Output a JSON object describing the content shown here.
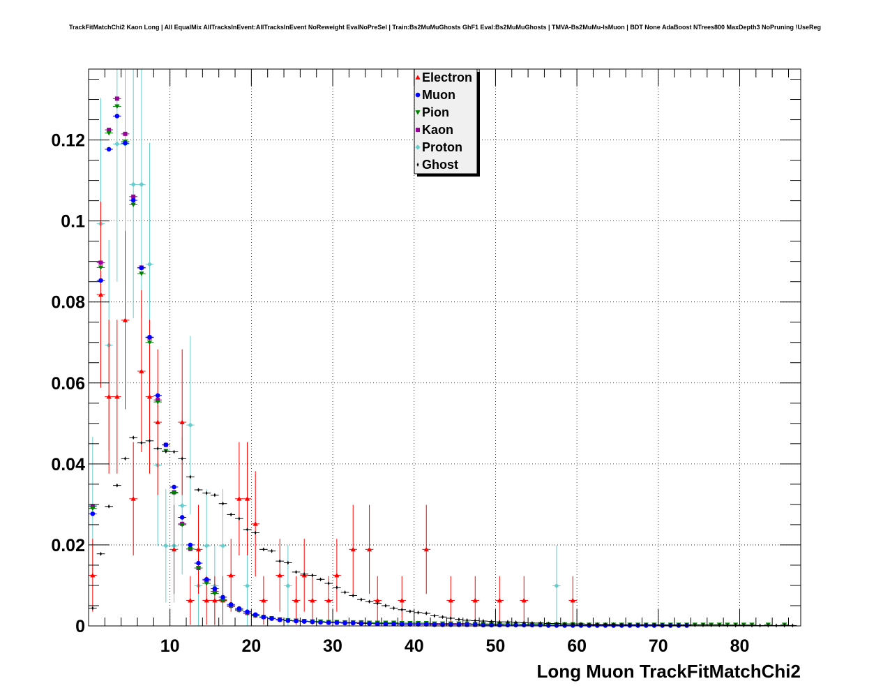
{
  "chart_data": {
    "type": "scatter",
    "title": "TrackFitMatchChi2 Kaon Long | All EqualMix AllTracksInEvent:AllTracksInEvent NoReweight EvalNoPreSel | Train:Bs2MuMuGhosts GhF1 Eval:Bs2MuMuGhosts | TMVA-Bs2MuMu-IsMuon | BDT None AdaBoost NTrees800 MaxDepth3 NoPruning !UseReg",
    "xlabel": "Long Muon TrackFitMatchChi2",
    "ylabel": "",
    "xlim": [
      0,
      87.5
    ],
    "ylim": [
      0,
      0.1375
    ],
    "xticks": [
      "10",
      "20",
      "30",
      "40",
      "50",
      "60",
      "70",
      "80"
    ],
    "yticks": [
      "0",
      "0.02",
      "0.04",
      "0.06",
      "0.08",
      "0.1",
      "0.12"
    ],
    "grid": true,
    "legend_position": "top-center",
    "series": [
      {
        "name": "Electron",
        "color": "#ff0000",
        "marker": "triangle-up",
        "x": [
          0.5,
          1.5,
          2.5,
          3.5,
          4.5,
          5.5,
          6.5,
          7.5,
          8.5,
          10.5,
          11.5,
          12.5,
          13.5,
          14.5,
          15.5,
          16.5,
          17.5,
          18.5,
          19.5,
          20.5,
          21.5,
          23.5,
          25.5,
          26.5,
          27.5,
          29.5,
          30.5,
          32.5,
          34.5,
          35.5,
          38.5,
          41.5,
          44.5,
          47.5,
          50.5,
          53.5,
          59.5
        ],
        "y": [
          0.0125,
          0.0818,
          0.0566,
          0.0566,
          0.0755,
          0.0314,
          0.0629,
          0.0566,
          0.0503,
          0.0189,
          0.0503,
          0.0063,
          0.0189,
          0.0063,
          0.0063,
          0.0063,
          0.0125,
          0.0314,
          0.0314,
          0.0252,
          0.0063,
          0.0125,
          0.0063,
          0.0125,
          0.0063,
          0.0063,
          0.0125,
          0.0189,
          0.0189,
          0.0063,
          0.0063,
          0.0189,
          0.0063,
          0.0063,
          0.0063,
          0.0063,
          0.0063
        ],
        "err": [
          0.009,
          0.023,
          0.019,
          0.019,
          0.022,
          0.014,
          0.02,
          0.019,
          0.018,
          0.011,
          0.018,
          0.006,
          0.011,
          0.006,
          0.006,
          0.006,
          0.009,
          0.014,
          0.014,
          0.013,
          0.006,
          0.009,
          0.006,
          0.009,
          0.006,
          0.006,
          0.009,
          0.011,
          0.011,
          0.006,
          0.006,
          0.011,
          0.006,
          0.006,
          0.006,
          0.006,
          0.006
        ]
      },
      {
        "name": "Muon",
        "color": "#0000ff",
        "marker": "circle",
        "x": [
          0.5,
          1.5,
          2.5,
          3.5,
          4.5,
          5.5,
          6.5,
          7.5,
          8.5,
          9.5,
          10.5,
          11.5,
          12.5,
          13.5,
          14.5,
          15.5,
          16.5,
          17.5,
          18.5,
          19.5,
          20.5,
          21.5,
          22.5,
          23.5,
          24.5,
          25.5,
          26.5,
          27.5,
          28.5,
          29.5,
          30.5,
          31.5,
          32.5,
          33.5,
          34.5,
          35.5,
          36.5,
          37.5,
          38.5,
          39.5,
          40.5,
          41.5,
          42.5,
          43.5,
          44.5,
          45.5,
          46.5,
          47.5,
          48.5,
          49.5,
          50.5,
          51.5,
          52.5,
          53.5,
          54.5,
          55.5,
          56.5,
          57.5,
          58.5,
          59.5,
          60.5,
          61.5,
          62.5,
          63.5,
          64.5,
          65.5,
          66.5,
          67.5,
          68.5,
          69.5,
          70.5,
          71.5,
          72.5,
          73.5
        ],
        "y": [
          0.0277,
          0.0853,
          0.1177,
          0.1259,
          0.1192,
          0.1051,
          0.0884,
          0.0713,
          0.0569,
          0.0447,
          0.0343,
          0.0268,
          0.02,
          0.0155,
          0.0115,
          0.0092,
          0.0071,
          0.0053,
          0.0043,
          0.0035,
          0.0028,
          0.0022,
          0.0018,
          0.0015,
          0.0013,
          0.0012,
          0.0011,
          0.001,
          0.0009,
          0.0008,
          0.0008,
          0.0007,
          0.0007,
          0.0006,
          0.0006,
          0.0005,
          0.0005,
          0.0005,
          0.0004,
          0.0004,
          0.0004,
          0.0004,
          0.0003,
          0.0003,
          0.0003,
          0.0003,
          0.0003,
          0.0003,
          0.0002,
          0.0002,
          0.0002,
          0.0002,
          0.0002,
          0.0002,
          0.0002,
          0.0002,
          0.0001,
          0.0001,
          0.0001,
          0.0001,
          0.0001,
          0.0001,
          0.0001,
          0.0001,
          0.0001,
          0.0001,
          0.0001,
          0.0001,
          0.0001,
          0.0001,
          0.0001,
          0.0001,
          0.0001,
          0.0001
        ]
      },
      {
        "name": "Pion",
        "color": "#008000",
        "marker": "triangle-down",
        "x": [
          0.5,
          1.5,
          2.5,
          3.5,
          4.5,
          5.5,
          6.5,
          7.5,
          8.5,
          9.5,
          10.5,
          11.5,
          12.5,
          13.5,
          14.5,
          15.5,
          16.5,
          17.5,
          18.5,
          19.5,
          20.5,
          21.5,
          22.5,
          23.5,
          24.5,
          25.5,
          26.5,
          27.5,
          28.5,
          29.5,
          30.5,
          31.5,
          32.5,
          33.5,
          34.5,
          35.5,
          36.5,
          37.5,
          38.5,
          39.5,
          40.5,
          41.5,
          42.5,
          43.5,
          44.5,
          45.5,
          46.5,
          47.5,
          48.5,
          49.5,
          50.5,
          51.5,
          52.5,
          53.5,
          54.5,
          55.5,
          56.5,
          57.5,
          58.5,
          59.5,
          60.5,
          61.5,
          62.5,
          63.5,
          64.5,
          65.5,
          66.5,
          67.5,
          68.5,
          69.5,
          70.5,
          71.5,
          72.5,
          73.5,
          74.5,
          75.5,
          76.5,
          77.5,
          78.5,
          79.5,
          80.5,
          81.5,
          83.5,
          85.5
        ],
        "y": [
          0.029,
          0.0885,
          0.1217,
          0.1283,
          0.1196,
          0.104,
          0.087,
          0.07,
          0.0553,
          0.0432,
          0.0328,
          0.025,
          0.019,
          0.0143,
          0.0105,
          0.008,
          0.0062,
          0.0048,
          0.0038,
          0.0031,
          0.0025,
          0.0021,
          0.0018,
          0.0016,
          0.0014,
          0.0013,
          0.0012,
          0.0011,
          0.0011,
          0.001,
          0.001,
          0.0009,
          0.0009,
          0.0009,
          0.0008,
          0.0008,
          0.0008,
          0.0008,
          0.0007,
          0.0007,
          0.0007,
          0.0007,
          0.0006,
          0.0006,
          0.0006,
          0.0006,
          0.0006,
          0.0005,
          0.0005,
          0.0005,
          0.0005,
          0.0005,
          0.0005,
          0.0004,
          0.0004,
          0.0004,
          0.0004,
          0.0004,
          0.0004,
          0.0004,
          0.0003,
          0.0003,
          0.0003,
          0.0003,
          0.0003,
          0.0003,
          0.0003,
          0.0003,
          0.0003,
          0.0003,
          0.0003,
          0.0003,
          0.0003,
          0.0003,
          0.0003,
          0.0003,
          0.0003,
          0.0003,
          0.0003,
          0.0003,
          0.0003,
          0.0003,
          0.0003,
          0.0003
        ]
      },
      {
        "name": "Kaon",
        "color": "#990099",
        "marker": "square",
        "x": [
          0.5,
          1.5,
          2.5,
          3.5,
          4.5,
          5.5,
          6.5,
          7.5,
          8.5,
          9.5,
          10.5,
          11.5,
          12.5,
          13.5,
          14.5,
          15.5,
          16.5,
          17.5,
          18.5,
          19.5,
          20.5,
          21.5,
          22.5,
          23.5,
          24.5,
          25.5,
          26.5,
          27.5,
          28.5,
          29.5,
          30.5,
          31.5,
          32.5,
          33.5,
          34.5,
          35.5,
          36.5,
          37.5,
          38.5,
          39.5,
          40.5,
          41.5,
          42.5,
          43.5,
          44.5,
          45.5,
          46.5,
          47.5,
          48.5,
          49.5,
          50.5
        ],
        "y": [
          0.0295,
          0.0897,
          0.1225,
          0.1302,
          0.1215,
          0.106,
          0.0885,
          0.0712,
          0.0558,
          0.0447,
          0.033,
          0.0252,
          0.019,
          0.0143,
          0.0112,
          0.0085,
          0.0065,
          0.005,
          0.004,
          0.0032,
          0.0026,
          0.0022,
          0.0019,
          0.0016,
          0.0014,
          0.0013,
          0.0012,
          0.0011,
          0.001,
          0.0009,
          0.0009,
          0.0008,
          0.0008,
          0.0007,
          0.0007,
          0.0006,
          0.0006,
          0.0006,
          0.0005,
          0.0005,
          0.0005,
          0.0005,
          0.0004,
          0.0004,
          0.0004,
          0.0004,
          0.0003,
          0.0003,
          0.0003,
          0.0003,
          0.0003
        ]
      },
      {
        "name": "Proton",
        "color": "#66cccc",
        "marker": "diamond",
        "x": [
          0.5,
          1.5,
          2.5,
          3.5,
          4.5,
          5.5,
          6.5,
          7.5,
          8.5,
          9.5,
          10.5,
          11.5,
          12.5,
          13.5,
          14.5,
          15.5,
          16.5,
          19.5,
          24.5,
          57.5
        ],
        "y": [
          0.0297,
          0.0993,
          0.0693,
          0.119,
          0.119,
          0.109,
          0.109,
          0.0893,
          0.0397,
          0.0198,
          0.0198,
          0.0297,
          0.0496,
          0.0099,
          0.0198,
          0.0099,
          0.0198,
          0.0099,
          0.0099,
          0.0099
        ],
        "err": [
          0.017,
          0.031,
          0.026,
          0.034,
          0.034,
          0.033,
          0.033,
          0.03,
          0.02,
          0.014,
          0.014,
          0.017,
          0.022,
          0.01,
          0.014,
          0.01,
          0.014,
          0.01,
          0.01,
          0.01
        ]
      },
      {
        "name": "Ghost",
        "color": "#000000",
        "marker": "cross",
        "x": [
          0.5,
          1.5,
          2.5,
          3.5,
          4.5,
          5.5,
          6.5,
          7.5,
          8.5,
          9.5,
          10.5,
          11.5,
          12.5,
          13.5,
          14.5,
          15.5,
          16.5,
          17.5,
          18.5,
          19.5,
          20.5,
          21.5,
          22.5,
          23.5,
          24.5,
          25.5,
          26.5,
          27.5,
          28.5,
          29.5,
          30.5,
          31.5,
          32.5,
          33.5,
          34.5,
          35.5,
          36.5,
          37.5,
          38.5,
          39.5,
          40.5,
          41.5,
          42.5,
          43.5,
          44.5,
          45.5,
          46.5,
          47.5,
          48.5,
          49.5,
          50.5,
          51.5,
          52.5,
          53.5,
          54.5,
          55.5,
          56.5,
          57.5,
          58.5,
          59.5,
          60.5,
          61.5,
          62.5,
          63.5,
          64.5,
          65.5,
          66.5,
          67.5,
          68.5,
          69.5,
          70.5,
          71.5,
          72.5,
          73.5,
          74.5,
          75.5,
          76.5,
          77.5,
          78.5,
          79.5,
          80.5,
          81.5,
          82.5,
          83.5,
          84.5,
          85.5,
          86.5
        ],
        "y": [
          0.0044,
          0.0178,
          0.0295,
          0.0347,
          0.0413,
          0.0465,
          0.0452,
          0.0457,
          0.0438,
          0.0431,
          0.043,
          0.0413,
          0.0368,
          0.0336,
          0.0328,
          0.0323,
          0.0302,
          0.0275,
          0.0265,
          0.0238,
          0.023,
          0.0189,
          0.0185,
          0.016,
          0.0156,
          0.0133,
          0.0128,
          0.0125,
          0.0115,
          0.0105,
          0.0095,
          0.0083,
          0.0075,
          0.0065,
          0.006,
          0.0056,
          0.005,
          0.0044,
          0.004,
          0.0036,
          0.0033,
          0.0031,
          0.0025,
          0.0022,
          0.0019,
          0.0016,
          0.0014,
          0.0013,
          0.0012,
          0.0011,
          0.001,
          0.001,
          0.0009,
          0.0008,
          0.0007,
          0.0007,
          0.0006,
          0.0006,
          0.0005,
          0.0005,
          0.0005,
          0.0004,
          0.0004,
          0.0004,
          0.0004,
          0.0003,
          0.0003,
          0.0003,
          0.0003,
          0.0003,
          0.0002,
          0.0002,
          0.0002,
          0.0002,
          0.0002,
          0.0002,
          0.0002,
          0.0002,
          0.0001,
          0.0001,
          0.0001,
          0.0001,
          0.0001,
          0.0001,
          0.0001,
          0.0001,
          0.0001
        ]
      }
    ]
  }
}
